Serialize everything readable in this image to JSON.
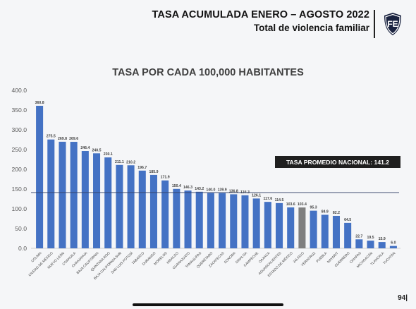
{
  "header": {
    "title": "TASA ACUMULADA ENERO – AGOSTO 2022",
    "subtitle": "Total de violencia familiar",
    "logo_text": "FE"
  },
  "page_number": "94|",
  "colors": {
    "bar": "#4472c4",
    "bar_highlight": "#7f7f7f",
    "average_line": "#2f3e63",
    "average_box": "#1f1f1f"
  },
  "chart_data": {
    "type": "bar",
    "title": "TASA POR CADA 100,000 HABITANTES",
    "xlabel": "",
    "ylabel": "",
    "ylim": [
      0,
      400
    ],
    "yticks": [
      "0.0",
      "50.0",
      "100.0",
      "150.0",
      "200.0",
      "250.0",
      "300.0",
      "350.0",
      "400.0"
    ],
    "categories": [
      "COLIMA",
      "CIUDAD DE MÉXICO",
      "NUEVO LEÓN",
      "COAHUILA",
      "CHIHUAHUA",
      "BAJA CALIFORNIA",
      "QUINTANA ROO",
      "BAJA CALIFORNIA SUR",
      "SAN LUIS POTOSÍ",
      "TABASCO",
      "DURANGO",
      "MORELOS",
      "HIDALGO",
      "GUANAJUATO",
      "TAMAULIPAS",
      "QUERÉTARO",
      "ZACATECAS",
      "SONORA",
      "SINALOA",
      "CAMPECHE",
      "OAXACA",
      "AGUASCALIENTES",
      "ESTADO DE MÉXICO",
      "JALISCO",
      "VERACRUZ",
      "PUEBLA",
      "NAYARIT",
      "GUERRERO",
      "CHIAPAS",
      "MICHOACÁN",
      "TLAXCALA",
      "YUCATÁN"
    ],
    "values": [
      360.8,
      275.5,
      269.8,
      269.6,
      246.4,
      240.5,
      230.1,
      211.1,
      210.2,
      196.7,
      185.9,
      171.9,
      150.4,
      146.3,
      143.2,
      140.0,
      139.9,
      136.8,
      134.3,
      126.1,
      117.6,
      114.5,
      103.6,
      103.4,
      95.3,
      84.9,
      82.2,
      64.5,
      22.7,
      19.5,
      15.9,
      6.0
    ],
    "value_labels": [
      "360.8",
      "275.5",
      "269.8",
      "269.6",
      "246.4",
      "240.5",
      "230.1",
      "211.1",
      "210.2",
      "196.7",
      "185.9",
      "171.9",
      "150.4",
      "146.3",
      "143.2",
      "140.0",
      "139.9",
      "136.8",
      "134.3",
      "126.1",
      "117.6",
      "114.5",
      "103.6",
      "103.4",
      "95.3",
      "84.9",
      "82.2",
      "64.5",
      "22.7",
      "19.5",
      "15.9",
      "6.0"
    ],
    "highlight_category": "JALISCO",
    "average": 141.2,
    "average_label": "TASA PROMEDIO NACIONAL:  141.2",
    "grid": false,
    "legend": "none"
  }
}
